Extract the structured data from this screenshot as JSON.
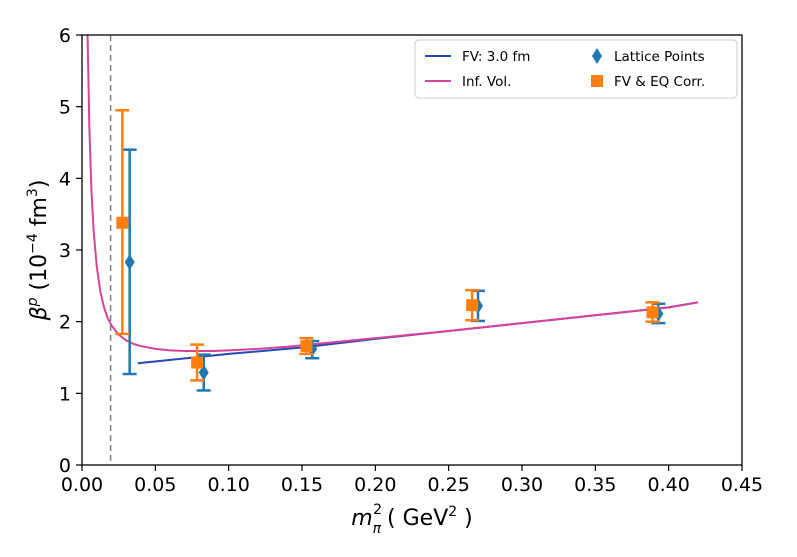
{
  "chart_data": {
    "type": "scatter",
    "title": "",
    "xlabel": {
      "base": "m",
      "sub": "π",
      "sup": "2",
      "units_open": "( GeV",
      "units_sup": "2",
      "units_close": " )"
    },
    "ylabel": {
      "base": "β",
      "sup": "p",
      "units_open": " (10",
      "units_sup": "−4",
      "units_mid": " fm",
      "units_sup2": "3",
      "units_close": ")"
    },
    "xlim": [
      0.0,
      0.45
    ],
    "ylim": [
      0,
      6
    ],
    "x_ticks": [
      0.0,
      0.05,
      0.1,
      0.15,
      0.2,
      0.25,
      0.3,
      0.35,
      0.4,
      0.45
    ],
    "x_tick_labels": [
      "0.00",
      "0.05",
      "0.10",
      "0.15",
      "0.20",
      "0.25",
      "0.30",
      "0.35",
      "0.40",
      "0.45"
    ],
    "y_ticks": [
      0,
      1,
      2,
      3,
      4,
      5,
      6
    ],
    "y_tick_labels": [
      "0",
      "1",
      "2",
      "3",
      "4",
      "5",
      "6"
    ],
    "vline": {
      "x": 0.0195,
      "style": "dashed",
      "color": "#808080"
    },
    "legend": {
      "placement": "top-right",
      "entries": [
        {
          "key": "fv",
          "label": "FV: 3.0 fm",
          "marker": "line",
          "color": "#2449b3"
        },
        {
          "key": "inf",
          "label": "Inf. Vol.",
          "marker": "line",
          "color": "#d6439a"
        },
        {
          "key": "lattice",
          "label": "Lattice Points",
          "marker": "diamond",
          "color": "#1f77b4"
        },
        {
          "key": "corr",
          "label": "FV & EQ Corr.",
          "marker": "square",
          "color": "#ff7f0e"
        }
      ]
    },
    "series": [
      {
        "name": "FV: 3.0 fm",
        "kind": "line",
        "color": "#2449b3",
        "x": [
          0.038,
          0.1,
          0.15,
          0.2,
          0.25,
          0.3,
          0.35,
          0.4,
          0.42
        ],
        "y": [
          1.42,
          1.55,
          1.64,
          1.76,
          1.87,
          1.98,
          2.09,
          2.2,
          2.27
        ]
      },
      {
        "name": "Inf. Vol.",
        "kind": "line",
        "color": "#d6439a",
        "x": [
          0.0038,
          0.005,
          0.0065,
          0.008,
          0.01,
          0.0125,
          0.015,
          0.0175,
          0.02,
          0.025,
          0.03,
          0.035,
          0.04,
          0.05,
          0.06,
          0.07,
          0.08,
          0.09,
          0.1,
          0.11,
          0.12,
          0.14,
          0.16,
          0.18,
          0.2,
          0.25,
          0.3,
          0.35,
          0.4,
          0.42
        ],
        "y": [
          6.0,
          4.72,
          3.8,
          3.25,
          2.78,
          2.42,
          2.2,
          2.05,
          1.95,
          1.82,
          1.74,
          1.69,
          1.66,
          1.62,
          1.6,
          1.59,
          1.59,
          1.59,
          1.6,
          1.61,
          1.62,
          1.65,
          1.69,
          1.73,
          1.77,
          1.87,
          1.98,
          2.09,
          2.2,
          2.27
        ]
      },
      {
        "name": "Lattice Points",
        "kind": "errorbar",
        "marker": "diamond",
        "color": "#1f77b4",
        "points": [
          {
            "x": 0.0325,
            "y": 2.83,
            "lo": 1.27,
            "hi": 4.4
          },
          {
            "x": 0.083,
            "y": 1.29,
            "lo": 1.04,
            "hi": 1.54
          },
          {
            "x": 0.157,
            "y": 1.62,
            "lo": 1.49,
            "hi": 1.73
          },
          {
            "x": 0.27,
            "y": 2.22,
            "lo": 2.01,
            "hi": 2.43
          },
          {
            "x": 0.393,
            "y": 2.11,
            "lo": 1.98,
            "hi": 2.25
          }
        ]
      },
      {
        "name": "FV & EQ Corr.",
        "kind": "errorbar",
        "marker": "square",
        "color": "#ff7f0e",
        "points": [
          {
            "x": 0.0275,
            "y": 3.38,
            "lo": 1.83,
            "hi": 4.95
          },
          {
            "x": 0.0785,
            "y": 1.43,
            "lo": 1.18,
            "hi": 1.68
          },
          {
            "x": 0.153,
            "y": 1.66,
            "lo": 1.55,
            "hi": 1.77
          },
          {
            "x": 0.266,
            "y": 2.23,
            "lo": 2.02,
            "hi": 2.44
          },
          {
            "x": 0.389,
            "y": 2.13,
            "lo": 2.0,
            "hi": 2.27
          }
        ]
      }
    ]
  }
}
